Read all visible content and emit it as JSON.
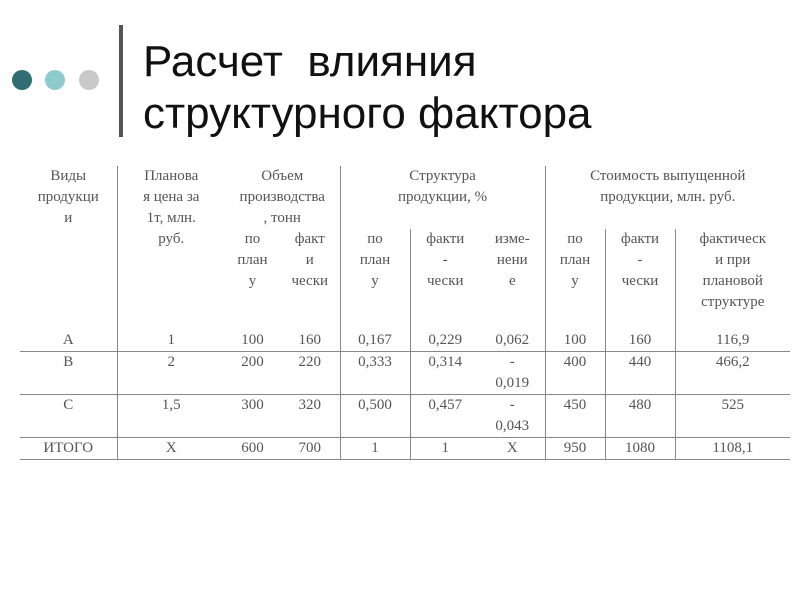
{
  "slide": {
    "title_line1": "Расчет  влияния",
    "title_line2": "структурного фактора",
    "dot_colors": [
      "#2f6e72",
      "#8ecbcf",
      "#c9c9c9"
    ]
  },
  "table": {
    "headers": {
      "kind": "Виды\nпродукци\nи",
      "price": "Планова\nя цена за\n1т, млн.\nруб.",
      "volume": "Объем\nпроизводства\n, тонн",
      "structure": "Структура\nпродукции, %",
      "cost": "Стоимость выпущенной\nпродукции, млн. руб.",
      "vol_plan": "по\nплан\nу",
      "vol_fact": "факт\nи\nчески",
      "str_plan": "по\nплан\nу",
      "str_fact": "факти\n-\nчески",
      "str_change": "изме-\nнени\nе",
      "cost_plan": "по\nплан\nу",
      "cost_fact": "факти\n-\nчески",
      "cost_fact_planstruct": "фактическ\nи при\nплановой\nструктуре"
    },
    "rows": [
      [
        "А",
        "1",
        "100",
        "160",
        "0,167",
        "0,229",
        "0,062",
        "100",
        "160",
        "116,9"
      ],
      [
        "В",
        "2",
        "200",
        "220",
        "0,333",
        "0,314",
        "-\n0,019",
        "400",
        "440",
        "466,2"
      ],
      [
        "С",
        "1,5",
        "300",
        "320",
        "0,500",
        "0,457",
        "-\n0,043",
        "450",
        "480",
        "525"
      ],
      [
        "ИТОГО",
        "Х",
        "600",
        "700",
        "1",
        "1",
        "Х",
        "950",
        "1080",
        "1108,1"
      ]
    ]
  }
}
